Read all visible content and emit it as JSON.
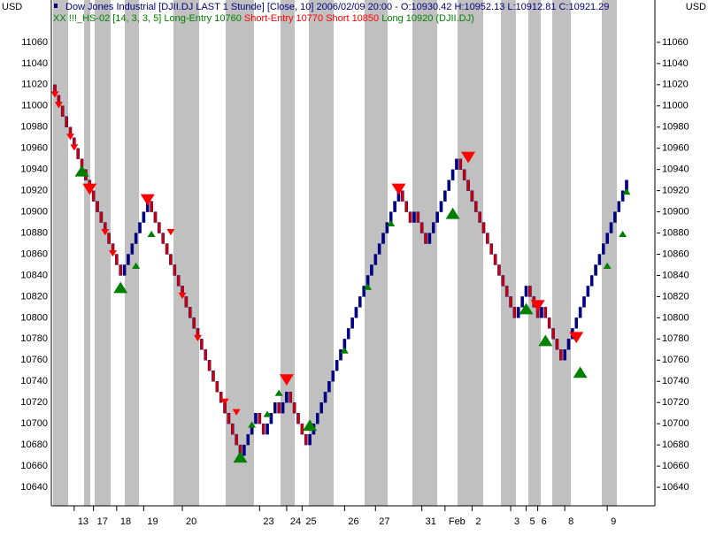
{
  "chart_data": {
    "type": "box",
    "title": "Dow Jones Industrial [DJII.DJ LAST 1 Stunde] [Close, 10] 2006/02/09 20:00 - O:10930.42 H:10952.13 L:10912.81 C:10921.29",
    "unit_left": "USD",
    "unit_right": "USD",
    "legend": [
      {
        "text": "XX !!!_HS-02 [14, 3, 3, 5]",
        "color": "#008000"
      },
      {
        "text": "Long-Entry 10760",
        "color": "#008000"
      },
      {
        "text": "Short-Entry 10770",
        "color": "#ff0000"
      },
      {
        "text": "Short 10850",
        "color": "#ff0000"
      },
      {
        "text": "Long 10920 (DJII.DJ)",
        "color": "#008000"
      }
    ],
    "ylim": [
      10622.5,
      11100
    ],
    "yticks": [
      10640,
      10660,
      10680,
      10700,
      10720,
      10740,
      10760,
      10780,
      10800,
      10820,
      10840,
      10860,
      10880,
      10900,
      10920,
      10940,
      10960,
      10980,
      11000,
      11020,
      11040,
      11060
    ],
    "box_size": 10,
    "up_color": "#000080",
    "down_color": "#cc0000",
    "values": [
      11010,
      11000,
      10990,
      10980,
      10970,
      10960,
      10950,
      10940,
      10930,
      10920,
      10910,
      10900,
      10890,
      10880,
      10870,
      10860,
      10850,
      10840,
      10850,
      10860,
      10870,
      10880,
      10890,
      10900,
      10910,
      10900,
      10890,
      10880,
      10870,
      10860,
      10850,
      10840,
      10830,
      10820,
      10810,
      10800,
      10790,
      10780,
      10770,
      10760,
      10750,
      10740,
      10730,
      10720,
      10710,
      10700,
      10690,
      10680,
      10670,
      10680,
      10690,
      10700,
      10710,
      10700,
      10690,
      10700,
      10710,
      10720,
      10710,
      10720,
      10730,
      10720,
      10710,
      10700,
      10690,
      10680,
      10690,
      10700,
      10710,
      10720,
      10730,
      10740,
      10750,
      10760,
      10770,
      10780,
      10790,
      10800,
      10810,
      10820,
      10830,
      10840,
      10850,
      10860,
      10870,
      10880,
      10890,
      10900,
      10910,
      10920,
      10910,
      10900,
      10890,
      10900,
      10890,
      10880,
      10870,
      10880,
      10890,
      10900,
      10910,
      10920,
      10930,
      10940,
      10950,
      10940,
      10930,
      10920,
      10910,
      10900,
      10890,
      10880,
      10870,
      10860,
      10850,
      10840,
      10830,
      10820,
      10810,
      10800,
      10810,
      10820,
      10830,
      10820,
      10810,
      10800,
      10810,
      10800,
      10790,
      10780,
      10770,
      10760,
      10770,
      10780,
      10790,
      10800,
      10810,
      10820,
      10830,
      10840,
      10850,
      10860,
      10870,
      10880,
      10890,
      10900,
      10910,
      10920,
      10930
    ],
    "x_labels": [
      {
        "label": "13",
        "at": 5
      },
      {
        "label": "17",
        "at": 10
      },
      {
        "label": "18",
        "at": 16
      },
      {
        "label": "19",
        "at": 23
      },
      {
        "label": "20",
        "at": 33
      },
      {
        "label": "23",
        "at": 53
      },
      {
        "label": "24",
        "at": 60
      },
      {
        "label": "25",
        "at": 64
      },
      {
        "label": "26",
        "at": 75
      },
      {
        "label": "27",
        "at": 83
      },
      {
        "label": "31",
        "at": 95
      },
      {
        "label": "Feb",
        "at": 101
      },
      {
        "label": "2",
        "at": 108
      },
      {
        "label": "3",
        "at": 118
      },
      {
        "label": "5",
        "at": 122
      },
      {
        "label": "6",
        "at": 125
      },
      {
        "label": "8",
        "at": 132
      },
      {
        "label": "9",
        "at": 143
      }
    ],
    "markers": [
      {
        "direction": "down",
        "color": "#ff0000",
        "large": [
          [
            9,
            10920
          ],
          [
            24,
            10910
          ],
          [
            60,
            10740
          ],
          [
            89,
            10920
          ],
          [
            107,
            10950
          ],
          [
            125,
            10810
          ],
          [
            135,
            10780
          ]
        ],
        "small": [
          [
            0,
            11010
          ],
          [
            1,
            11000
          ],
          [
            4,
            10970
          ],
          [
            5,
            10960
          ],
          [
            13,
            10880
          ],
          [
            15,
            10860
          ],
          [
            30,
            10880
          ],
          [
            33,
            10820
          ],
          [
            37,
            10780
          ],
          [
            44,
            10720
          ],
          [
            47,
            10710
          ]
        ]
      },
      {
        "direction": "up",
        "color": "#008000",
        "large": [
          [
            7,
            10940
          ],
          [
            17,
            10830
          ],
          [
            48,
            10670
          ],
          [
            66,
            10700
          ],
          [
            103,
            10900
          ],
          [
            122,
            10810
          ],
          [
            127,
            10780
          ],
          [
            136,
            10750
          ]
        ],
        "small": [
          [
            21,
            10850
          ],
          [
            25,
            10880
          ],
          [
            51,
            10700
          ],
          [
            55,
            10710
          ],
          [
            58,
            10730
          ],
          [
            75,
            10770
          ],
          [
            81,
            10830
          ],
          [
            87,
            10890
          ],
          [
            143,
            10850
          ],
          [
            147,
            10880
          ],
          [
            148,
            10920
          ]
        ]
      }
    ]
  }
}
